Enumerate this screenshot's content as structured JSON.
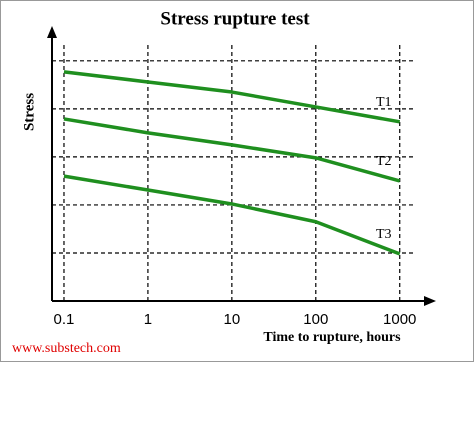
{
  "chart_data": {
    "type": "line",
    "title": "Stress rupture test",
    "x_label": "Time to rupture,  hours",
    "y_label": "Stress",
    "source": "www.substech.com",
    "x": [
      0.1,
      1,
      10,
      100,
      1000
    ],
    "xscale": "log",
    "xlim": [
      0.072,
      2000
    ],
    "xticks": [
      0.1,
      1,
      10,
      100,
      1000
    ],
    "ylim": [
      0,
      5.6
    ],
    "yticks": [
      1,
      2,
      3,
      4,
      5
    ],
    "grid": true,
    "series": [
      {
        "name": "T1",
        "color": "#1f8f1f",
        "values": [
          4.77,
          4.56,
          4.35,
          4.04,
          3.73
        ]
      },
      {
        "name": "T2",
        "color": "#1f8f1f",
        "values": [
          3.79,
          3.5,
          3.25,
          2.98,
          2.5
        ]
      },
      {
        "name": "T3",
        "color": "#1f8f1f",
        "values": [
          2.6,
          2.31,
          2.02,
          1.65,
          0.98
        ]
      }
    ]
  }
}
